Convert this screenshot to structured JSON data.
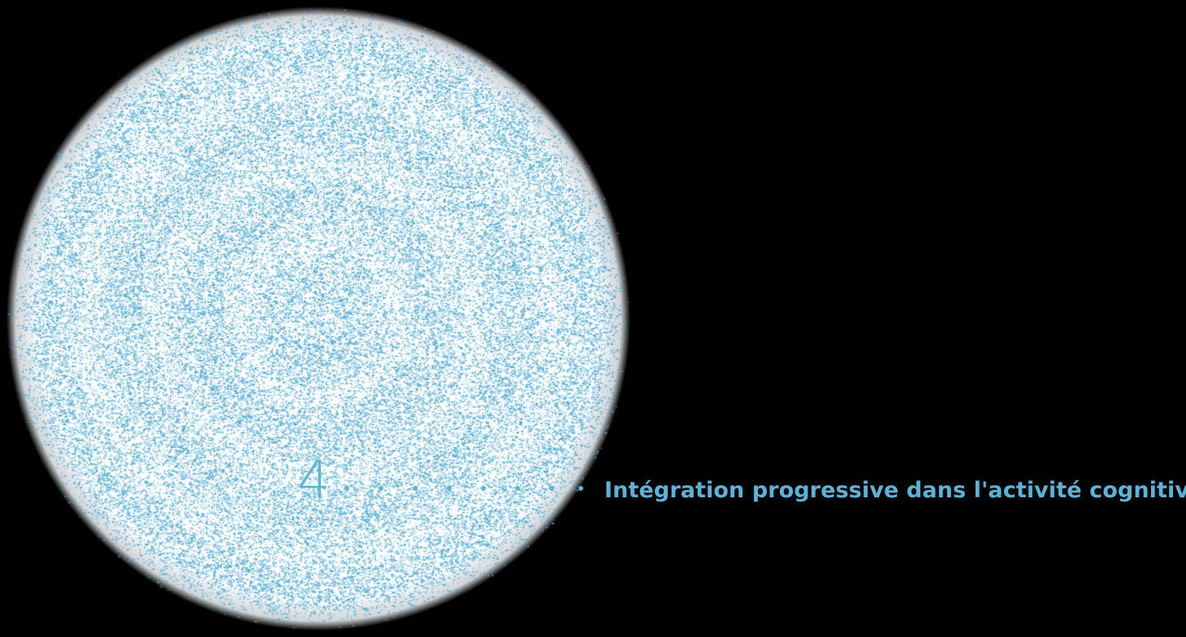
{
  "step": {
    "number": "4",
    "caption": "Intégration progressive dans l'activité cognitive"
  },
  "colors": {
    "background": "#000000",
    "accent": "#5ab3d9",
    "particle": "#4fa9d3",
    "halo": "#e4f1f7"
  },
  "illustration": {
    "type": "particle-sphere",
    "rings": 4
  }
}
